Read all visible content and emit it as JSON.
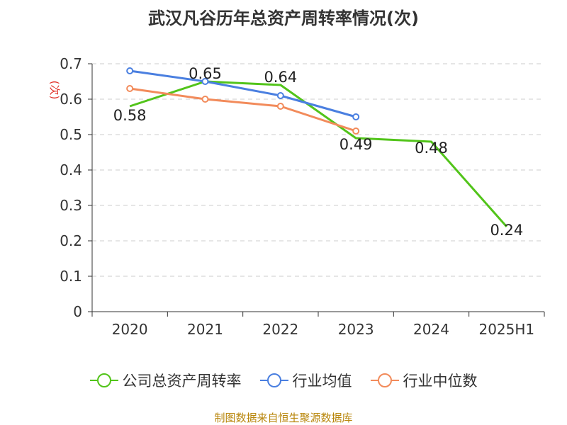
{
  "source": "制图数据来自恒生聚源数据库",
  "chart_data": {
    "type": "line",
    "title": "武汉凡谷历年总资产周转率情况(次)",
    "ylabel": "(次)",
    "xlabel": "",
    "categories": [
      "2020",
      "2021",
      "2022",
      "2023",
      "2024",
      "2025H1"
    ],
    "ylim": [
      0,
      0.7
    ],
    "yticks": [
      "0",
      "0.1",
      "0.2",
      "0.3",
      "0.4",
      "0.5",
      "0.6",
      "0.7"
    ],
    "grid": true,
    "legend_position": "bottom",
    "series": [
      {
        "name": "公司总资产周转率",
        "color": "#52c41a",
        "values": [
          0.58,
          0.65,
          0.64,
          0.49,
          0.48,
          0.24
        ],
        "labels": [
          "0.58",
          "0.65",
          "0.64",
          "0.49",
          "0.48",
          "0.24"
        ]
      },
      {
        "name": "行业均值",
        "color": "#4a7fe0",
        "values": [
          0.68,
          0.65,
          0.61,
          0.55,
          null,
          null
        ]
      },
      {
        "name": "行业中位数",
        "color": "#f28b5b",
        "values": [
          0.63,
          0.6,
          0.58,
          0.51,
          null,
          null
        ]
      }
    ]
  }
}
